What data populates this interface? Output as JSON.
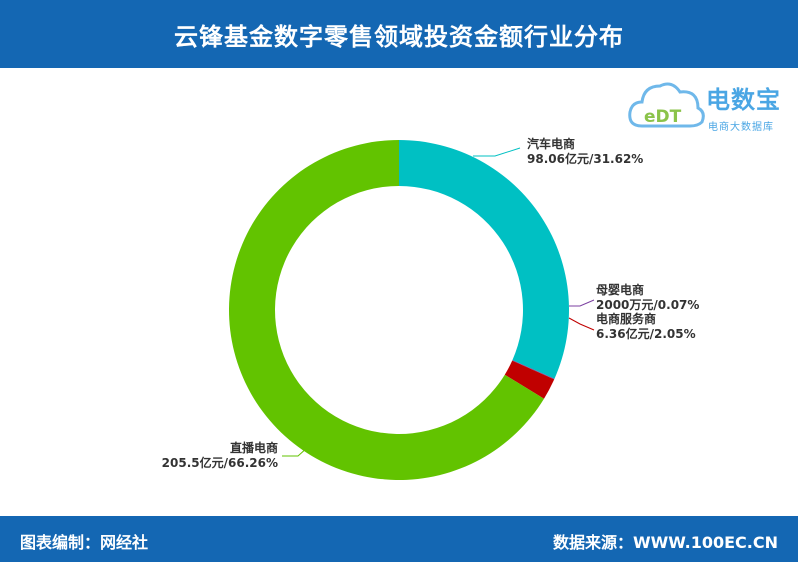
{
  "header": {
    "title": "云锋基金数字零售领域投资金额行业分布"
  },
  "footer": {
    "left": "图表编制：网经社",
    "right": "数据来源：WWW.100EC.CN"
  },
  "logo": {
    "mark": "eDT",
    "name": "电数宝",
    "subtitle": "电商大数据库"
  },
  "colors": {
    "header_bg": "#1467b3",
    "auto": "#00c0c3",
    "baby": "#7b3fa0",
    "service": "#c00000",
    "live": "#62c300"
  },
  "chart_data": {
    "type": "pie",
    "donut": true,
    "start": "top, clockwise",
    "series": [
      {
        "label": "汽车电商",
        "value_text": "98.06亿元/31.62%",
        "percent": 31.62,
        "color": "#00c0c3"
      },
      {
        "label": "母婴电商",
        "value_text": "2000万元/0.07%",
        "percent": 0.07,
        "color": "#7b3fa0"
      },
      {
        "label": "电商服务商",
        "value_text": "6.36亿元/2.05%",
        "percent": 2.05,
        "color": "#c00000"
      },
      {
        "label": "直播电商",
        "value_text": "205.5亿元/66.26%",
        "percent": 66.26,
        "color": "#62c300"
      }
    ]
  }
}
